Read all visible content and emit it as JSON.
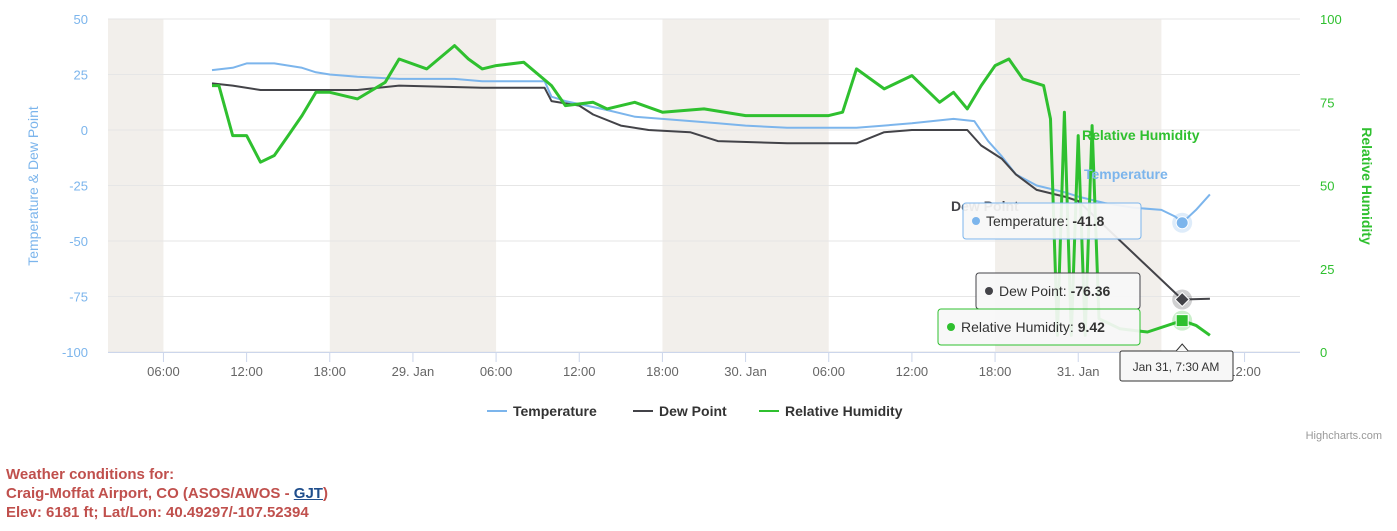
{
  "chart_data": {
    "type": "line",
    "title": "",
    "x_axis": {
      "tick_labels": [
        "06:00",
        "12:00",
        "18:00",
        "29. Jan",
        "06:00",
        "12:00",
        "18:00",
        "30. Jan",
        "06:00",
        "12:00",
        "18:00",
        "31. Jan",
        "06:00",
        "12:00"
      ],
      "range": [
        "2023-01-28 02:00",
        "2023-01-31 16:00"
      ],
      "night_bands": [
        [
          "2023-01-28 00:00",
          "2023-01-28 06:00"
        ],
        [
          "2023-01-28 18:00",
          "2023-01-29 06:00"
        ],
        [
          "2023-01-29 18:00",
          "2023-01-30 06:00"
        ],
        [
          "2023-01-30 18:00",
          "2023-01-31 06:00"
        ],
        [
          "2023-01-31 18:00",
          "2023-02-01 06:00"
        ]
      ],
      "note_bands_color": "#f2efeb"
    },
    "y_axis_left": {
      "label": "Temperature & Dew Point",
      "ticks": [
        50,
        25,
        0,
        -25,
        -50,
        -75,
        -100
      ],
      "range": [
        -100,
        50
      ],
      "color": "#7cb5ec"
    },
    "y_axis_right": {
      "label": "Relative Humidity",
      "ticks": [
        100,
        75,
        50,
        25,
        0
      ],
      "range": [
        0,
        100
      ],
      "color": "#2fc02f"
    },
    "series": [
      {
        "name": "Temperature",
        "color": "#7cb5ec",
        "axis": "left",
        "points": [
          [
            "2023-01-28 09:30",
            27
          ],
          [
            "2023-01-28 11:00",
            28
          ],
          [
            "2023-01-28 12:00",
            30
          ],
          [
            "2023-01-28 14:00",
            30
          ],
          [
            "2023-01-28 16:00",
            28
          ],
          [
            "2023-01-28 17:00",
            26
          ],
          [
            "2023-01-28 18:00",
            25
          ],
          [
            "2023-01-28 20:00",
            24
          ],
          [
            "2023-01-28 23:00",
            23
          ],
          [
            "2023-01-29 03:00",
            23
          ],
          [
            "2023-01-29 05:00",
            22
          ],
          [
            "2023-01-29 08:00",
            22
          ],
          [
            "2023-01-29 09:30",
            22
          ],
          [
            "2023-01-29 10:00",
            15
          ],
          [
            "2023-01-29 11:00",
            13
          ],
          [
            "2023-01-29 14:00",
            9
          ],
          [
            "2023-01-29 16:00",
            6
          ],
          [
            "2023-01-29 18:00",
            5
          ],
          [
            "2023-01-29 22:00",
            3
          ],
          [
            "2023-01-30 00:00",
            2
          ],
          [
            "2023-01-30 03:00",
            1
          ],
          [
            "2023-01-30 08:00",
            1
          ],
          [
            "2023-01-30 12:00",
            3
          ],
          [
            "2023-01-30 15:00",
            5
          ],
          [
            "2023-01-30 16:30",
            4
          ],
          [
            "2023-01-30 17:30",
            -5
          ],
          [
            "2023-01-30 18:30",
            -12
          ],
          [
            "2023-01-30 19:30",
            -20
          ],
          [
            "2023-01-30 21:00",
            -25
          ],
          [
            "2023-01-30 23:00",
            -28
          ],
          [
            "2023-01-31 00:00",
            -30
          ],
          [
            "2023-01-31 02:00",
            -33
          ],
          [
            "2023-01-31 04:00",
            -35
          ],
          [
            "2023-01-31 06:00",
            -36
          ],
          [
            "2023-01-31 07:00",
            -39
          ],
          [
            "2023-01-31 07:30",
            -41.8
          ],
          [
            "2023-01-31 08:30",
            -36
          ],
          [
            "2023-01-31 09:30",
            -29
          ]
        ]
      },
      {
        "name": "Dew Point",
        "color": "#434348",
        "axis": "left",
        "points": [
          [
            "2023-01-28 09:30",
            21
          ],
          [
            "2023-01-28 11:00",
            20
          ],
          [
            "2023-01-28 13:00",
            18
          ],
          [
            "2023-01-28 15:00",
            18
          ],
          [
            "2023-01-28 17:00",
            18
          ],
          [
            "2023-01-28 20:00",
            18
          ],
          [
            "2023-01-28 23:00",
            20
          ],
          [
            "2023-01-29 05:00",
            19
          ],
          [
            "2023-01-29 08:00",
            19
          ],
          [
            "2023-01-29 09:30",
            19
          ],
          [
            "2023-01-29 10:00",
            13
          ],
          [
            "2023-01-29 12:00",
            11
          ],
          [
            "2023-01-29 13:00",
            7
          ],
          [
            "2023-01-29 15:00",
            2
          ],
          [
            "2023-01-29 17:00",
            0
          ],
          [
            "2023-01-29 20:00",
            -1
          ],
          [
            "2023-01-29 22:00",
            -5
          ],
          [
            "2023-01-30 03:00",
            -6
          ],
          [
            "2023-01-30 08:00",
            -6
          ],
          [
            "2023-01-30 10:00",
            -1
          ],
          [
            "2023-01-30 12:00",
            0
          ],
          [
            "2023-01-30 16:00",
            0
          ],
          [
            "2023-01-30 17:00",
            -7
          ],
          [
            "2023-01-30 18:30",
            -13
          ],
          [
            "2023-01-30 19:30",
            -20
          ],
          [
            "2023-01-30 21:00",
            -27
          ],
          [
            "2023-01-30 23:00",
            -30
          ],
          [
            "2023-01-31 00:00",
            -32
          ],
          [
            "2023-01-31 07:30",
            -76.36
          ],
          [
            "2023-01-31 09:30",
            -76
          ]
        ]
      },
      {
        "name": "Relative Humidity",
        "color": "#2fc02f",
        "axis": "right",
        "points": [
          [
            "2023-01-28 09:30",
            80
          ],
          [
            "2023-01-28 10:00",
            80
          ],
          [
            "2023-01-28 11:00",
            65
          ],
          [
            "2023-01-28 12:00",
            65
          ],
          [
            "2023-01-28 13:00",
            57
          ],
          [
            "2023-01-28 14:00",
            59
          ],
          [
            "2023-01-28 15:00",
            65
          ],
          [
            "2023-01-28 16:00",
            71
          ],
          [
            "2023-01-28 17:00",
            78
          ],
          [
            "2023-01-28 18:00",
            78
          ],
          [
            "2023-01-28 20:00",
            76
          ],
          [
            "2023-01-28 22:00",
            81
          ],
          [
            "2023-01-28 23:00",
            88
          ],
          [
            "2023-01-29 01:00",
            85
          ],
          [
            "2023-01-29 03:00",
            92
          ],
          [
            "2023-01-29 04:00",
            88
          ],
          [
            "2023-01-29 05:00",
            85
          ],
          [
            "2023-01-29 06:00",
            86
          ],
          [
            "2023-01-29 08:00",
            87
          ],
          [
            "2023-01-29 10:00",
            80
          ],
          [
            "2023-01-29 11:00",
            74
          ],
          [
            "2023-01-29 13:00",
            75
          ],
          [
            "2023-01-29 14:00",
            73
          ],
          [
            "2023-01-29 16:00",
            75
          ],
          [
            "2023-01-29 18:00",
            72
          ],
          [
            "2023-01-29 21:00",
            73
          ],
          [
            "2023-01-30 00:00",
            71
          ],
          [
            "2023-01-30 06:00",
            71
          ],
          [
            "2023-01-30 07:00",
            72
          ],
          [
            "2023-01-30 08:00",
            85
          ],
          [
            "2023-01-30 10:00",
            79
          ],
          [
            "2023-01-30 12:00",
            83
          ],
          [
            "2023-01-30 14:00",
            75
          ],
          [
            "2023-01-30 15:00",
            78
          ],
          [
            "2023-01-30 16:00",
            73
          ],
          [
            "2023-01-30 17:00",
            80
          ],
          [
            "2023-01-30 18:00",
            86
          ],
          [
            "2023-01-30 19:00",
            88
          ],
          [
            "2023-01-30 20:00",
            82
          ],
          [
            "2023-01-30 21:30",
            80
          ],
          [
            "2023-01-30 22:00",
            70
          ],
          [
            "2023-01-30 22:30",
            5
          ],
          [
            "2023-01-30 23:00",
            72
          ],
          [
            "2023-01-30 23:30",
            5
          ],
          [
            "2023-01-31 00:00",
            65
          ],
          [
            "2023-01-31 00:30",
            5
          ],
          [
            "2023-01-31 01:00",
            68
          ],
          [
            "2023-01-31 01:30",
            10
          ],
          [
            "2023-01-31 03:00",
            7
          ],
          [
            "2023-01-31 05:00",
            6
          ],
          [
            "2023-01-31 07:30",
            9.42
          ],
          [
            "2023-01-31 08:30",
            8
          ],
          [
            "2023-01-31 09:30",
            5
          ]
        ]
      }
    ],
    "inline_labels": [
      {
        "text": "Relative Humidity",
        "color": "#2fc02f"
      },
      {
        "text": "Temperature",
        "color": "#7cb5ec"
      },
      {
        "text": "Dew Point",
        "color": "#434348"
      }
    ],
    "tooltips": [
      {
        "label": "Temperature",
        "value": "-41.8",
        "border": "#7cb5ec"
      },
      {
        "label": "Dew Point",
        "value": "-76.36",
        "border": "#434348"
      },
      {
        "label": "Relative Humidity",
        "value": "9.42",
        "border": "#2fc02f"
      }
    ],
    "x_tooltip": "Jan 31, 7:30 AM",
    "hover_time": "2023-01-31 07:30",
    "legend": {
      "position": "bottom-center",
      "items": [
        "Temperature",
        "Dew Point",
        "Relative Humidity"
      ]
    },
    "grid": true
  },
  "credits": "Highcharts.com",
  "station": {
    "line1": "Weather conditions for:",
    "line2_prefix": "Craig-Moffat Airport, CO (ASOS/AWOS - ",
    "line2_link": "GJT",
    "line2_suffix": ")",
    "line3": "Elev: 6181 ft; Lat/Lon: 40.49297/-107.52394"
  }
}
